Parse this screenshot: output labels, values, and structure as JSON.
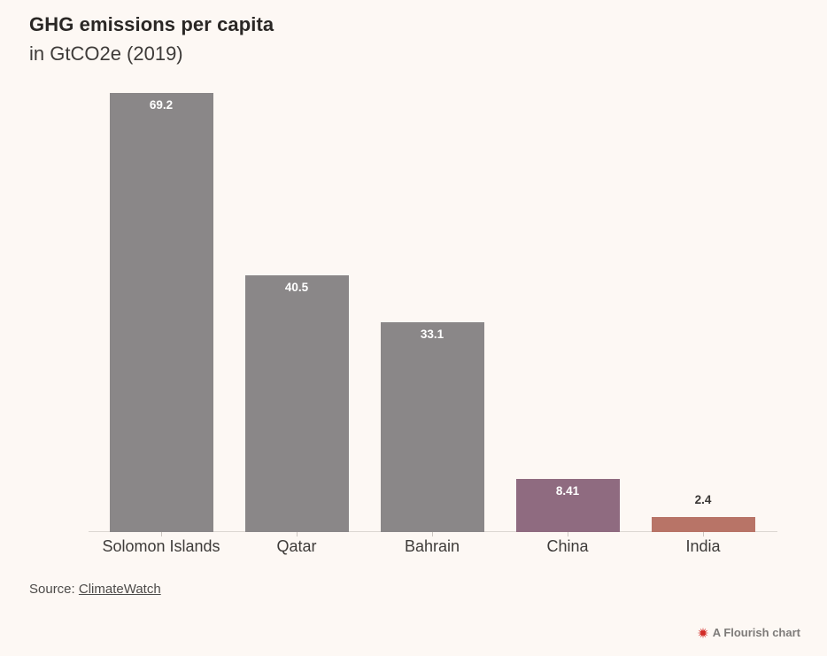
{
  "header": {
    "title": "GHG emissions per capita",
    "subtitle": "in GtCO2e (2019)"
  },
  "chart_data": {
    "type": "bar",
    "orientation": "vertical",
    "title": "GHG emissions per capita",
    "subtitle": "in GtCO2e (2019)",
    "categories": [
      "Solomon Islands",
      "Qatar",
      "Bahrain",
      "China",
      "India"
    ],
    "values": [
      69.2,
      40.5,
      33.1,
      8.41,
      2.4
    ],
    "value_labels": [
      "69.2",
      "40.5",
      "33.1",
      "8.41",
      "2.4"
    ],
    "series": [
      {
        "name": "GHG emissions per capita",
        "values": [
          69.2,
          40.5,
          33.1,
          8.41,
          2.4
        ]
      }
    ],
    "bar_colors": [
      "#8A8788",
      "#8A8788",
      "#8A8788",
      "#8F6B80",
      "#B87467"
    ],
    "xlabel": "",
    "ylabel": "",
    "ylim": [
      0,
      72
    ],
    "grid": false,
    "legend": "none"
  },
  "source": {
    "prefix": "Source: ",
    "link_label": "ClimateWatch"
  },
  "credit": {
    "label": "A Flourish chart",
    "icon": "flourish-starburst-icon",
    "icon_color": "#D22B26"
  },
  "colors": {
    "background": "#FDF8F4",
    "bar_default": "#8A8788",
    "bar_china": "#8F6B80",
    "bar_india": "#B87467",
    "value_label_inside": "#FFFFFF",
    "value_label_outside": "#3A3735",
    "axis_line": "#DCD7D2",
    "title_text": "#2A2725",
    "body_text": "#3E3B39",
    "flourish_red": "#D22B26"
  }
}
